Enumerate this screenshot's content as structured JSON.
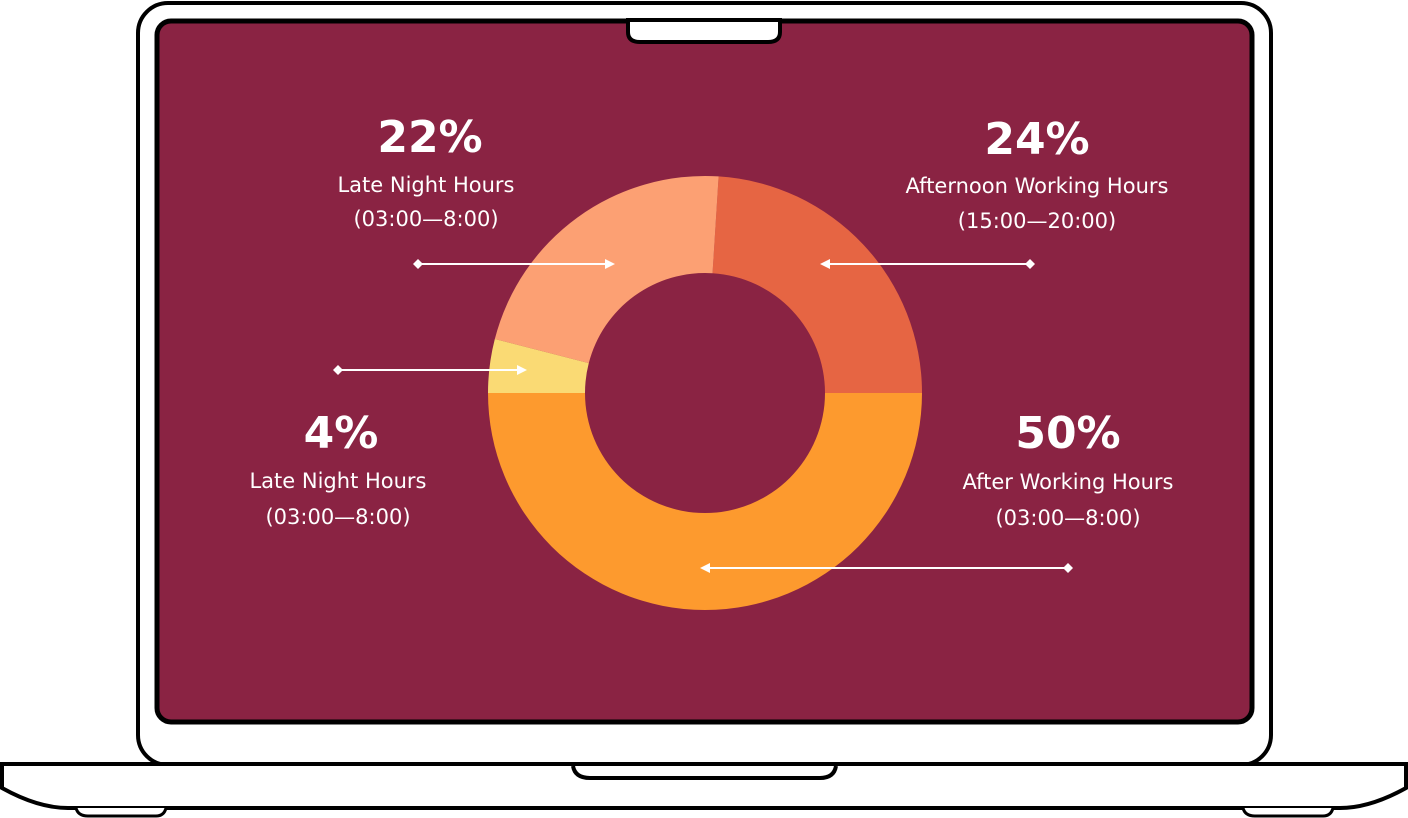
{
  "colors": {
    "screen": "#8A2343",
    "frame": "#000000"
  },
  "chart_data": {
    "type": "pie",
    "donut": true,
    "slices": [
      {
        "value": 24,
        "label": "24%",
        "name": "Afternoon Working Hours",
        "range": "(15:00—20:00)",
        "color": "#E66543"
      },
      {
        "value": 22,
        "label": "22%",
        "name": "Late Night Hours",
        "range": "(03:00—8:00)",
        "color": "#FCA073"
      },
      {
        "value": 4,
        "label": "4%",
        "name": "Late Night Hours",
        "range": "(03:00—8:00)",
        "color": "#FADA74"
      },
      {
        "value": 50,
        "label": "50%",
        "name": "After Working Hours",
        "range": "(03:00—8:00)",
        "color": "#FD9A2E"
      }
    ]
  }
}
